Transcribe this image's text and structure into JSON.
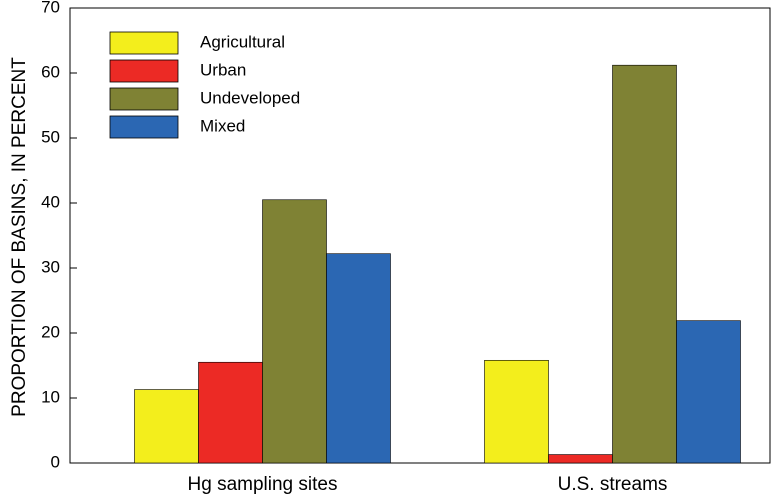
{
  "chart_data": {
    "type": "bar",
    "y_label": "PROPORTION OF BASINS, IN PERCENT",
    "categories": [
      "Hg sampling sites",
      "U.S. streams"
    ],
    "series": [
      {
        "name": "Agricultural",
        "color": "#f3ee1c",
        "values": [
          11.3,
          15.8
        ]
      },
      {
        "name": "Urban",
        "color": "#ec2a25",
        "values": [
          15.5,
          1.3
        ]
      },
      {
        "name": "Undeveloped",
        "color": "#7f8234",
        "values": [
          40.5,
          61.2
        ]
      },
      {
        "name": "Mixed",
        "color": "#2b67b3",
        "values": [
          32.2,
          21.9
        ]
      }
    ],
    "ylim": [
      0,
      70
    ],
    "yticks": [
      0,
      10,
      20,
      30,
      40,
      50,
      60,
      70
    ],
    "legend": "upper left"
  }
}
